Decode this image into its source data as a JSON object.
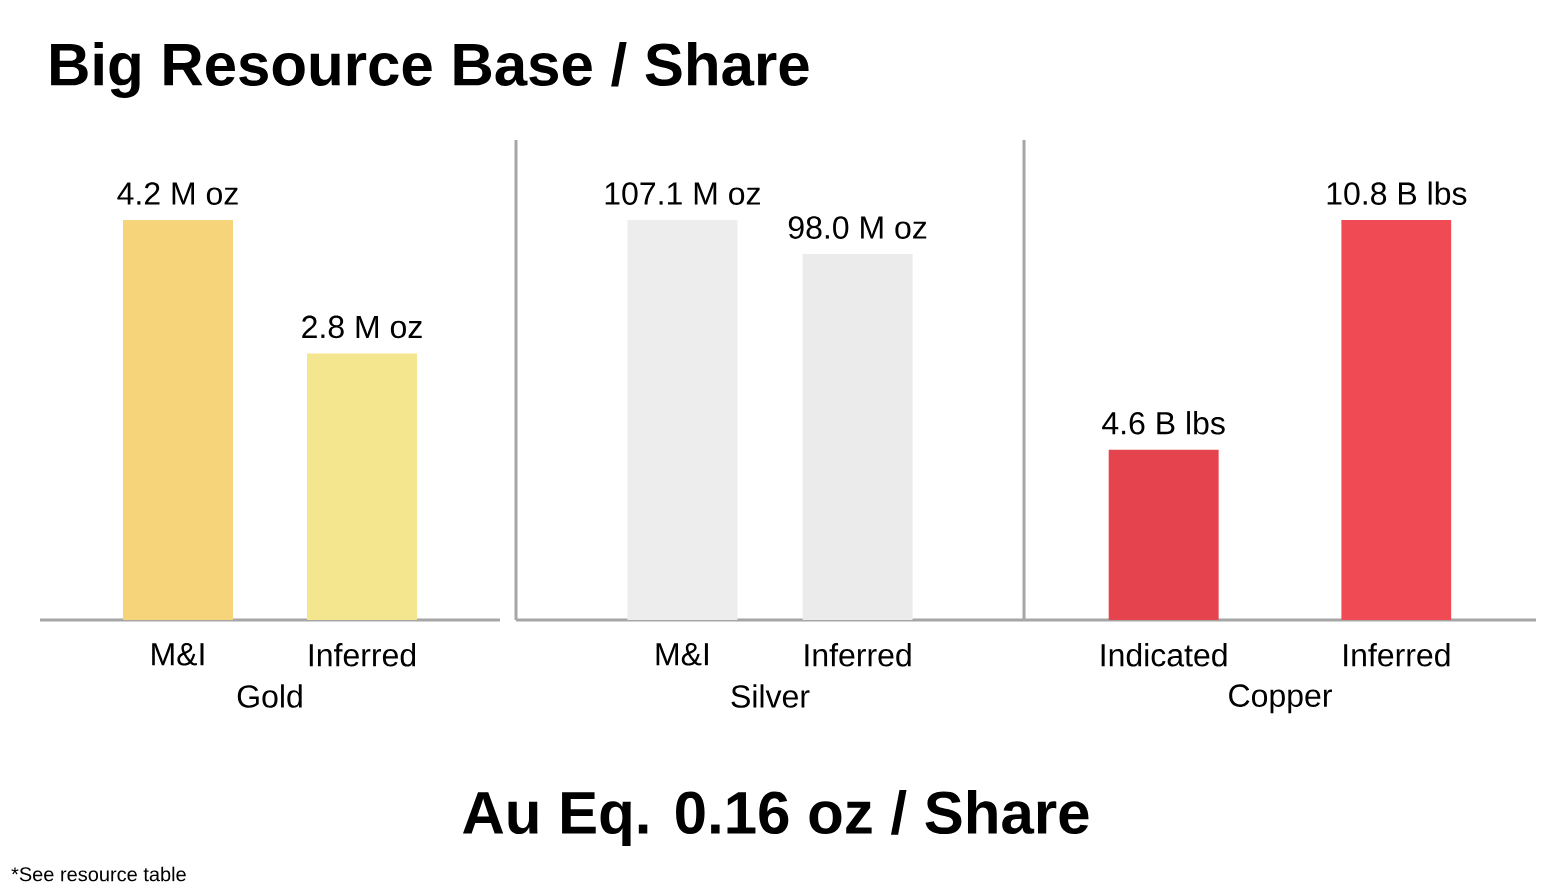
{
  "chart_data": [
    {
      "type": "bar",
      "title": "Big Resource Base / Share",
      "xlabel": "Gold",
      "categories": [
        "M&I",
        "Inferred"
      ],
      "values": [
        4.2,
        2.8
      ],
      "colors": [
        "#f6d57a",
        "#f4e68e"
      ],
      "value_labels": [
        "4.2 M oz",
        "2.8 M oz"
      ],
      "annotations": [
        "Au Eq. 0.16 oz / Share",
        "*See resource table"
      ]
    },
    {
      "type": "bar",
      "xlabel": "Silver",
      "categories": [
        "M&I",
        "Inferred"
      ],
      "values": [
        107.1,
        98.0
      ],
      "colors": [
        "#ededed",
        "#ebebeb"
      ],
      "value_labels": [
        "107.1 M oz",
        "98.0 M oz"
      ]
    },
    {
      "type": "bar",
      "xlabel": "Copper",
      "categories": [
        "Indicated",
        "Inferred"
      ],
      "values": [
        4.6,
        10.8
      ],
      "colors": [
        "#e5434e",
        "#f04a55"
      ],
      "value_labels": [
        "4.6 B lbs",
        "10.8 B lbs"
      ]
    }
  ]
}
